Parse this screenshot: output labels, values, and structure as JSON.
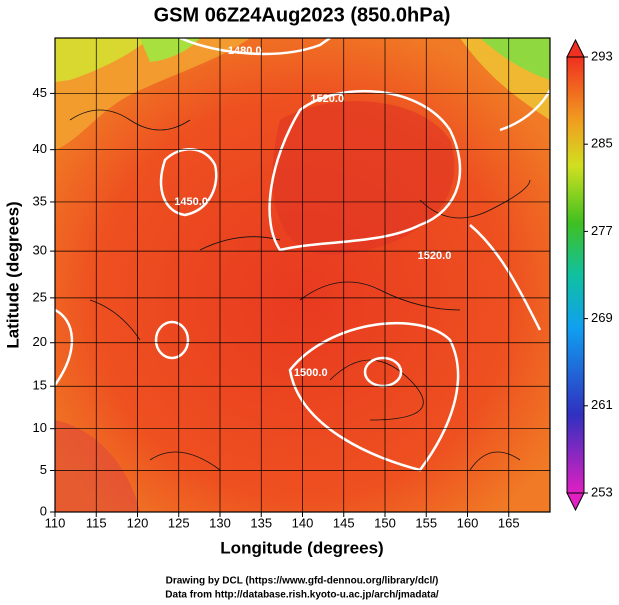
{
  "chart_data": {
    "type": "map",
    "title": "GSM 06Z24Aug2023 (850.0hPa)",
    "x_label": "Longitude (degrees)",
    "y_label": "Latitude  (degrees)",
    "projection": "mercator",
    "xlim": [
      110,
      170
    ],
    "ylim": [
      0,
      50
    ],
    "xticks": [
      110,
      115,
      120,
      125,
      130,
      135,
      140,
      145,
      150,
      155,
      160,
      165
    ],
    "yticks": [
      0,
      5,
      10,
      15,
      20,
      25,
      30,
      35,
      40,
      45
    ],
    "colorbar": {
      "lim": [
        253,
        293
      ],
      "ticks": [
        253,
        261,
        269,
        277,
        285,
        293
      ]
    },
    "contour_labels": [
      {
        "text": "1480.0",
        "lon": 133,
        "lat": 48.5
      },
      {
        "text": "1520.0",
        "lon": 143,
        "lat": 44.5
      },
      {
        "text": "1450.0",
        "lon": 126.5,
        "lat": 35
      },
      {
        "text": "1520.0",
        "lon": 156,
        "lat": 29.5
      },
      {
        "text": "1500.0",
        "lon": 141,
        "lat": 16.5
      }
    ],
    "credits": [
      "Drawing by DCL (https://www.gfd-dennou.org/library/dcl/)",
      "Data from http://database.rish.kyoto-u.ac.jp/arch/jmadata/"
    ]
  }
}
